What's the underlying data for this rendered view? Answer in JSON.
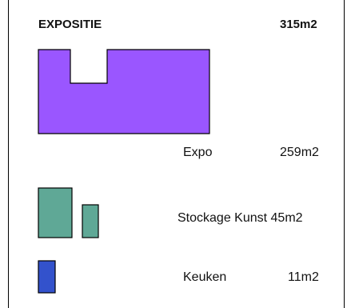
{
  "header": {
    "title": "EXPOSITIE",
    "total_area": "315m2"
  },
  "rooms": [
    {
      "name": "Expo",
      "area": "259m2",
      "color": "#9a56ff"
    },
    {
      "name": "Stockage Kunst",
      "area": "45m2",
      "color": "#5fa896"
    },
    {
      "name": "Keuken",
      "area": "11m2",
      "color": "#3352cc"
    }
  ]
}
